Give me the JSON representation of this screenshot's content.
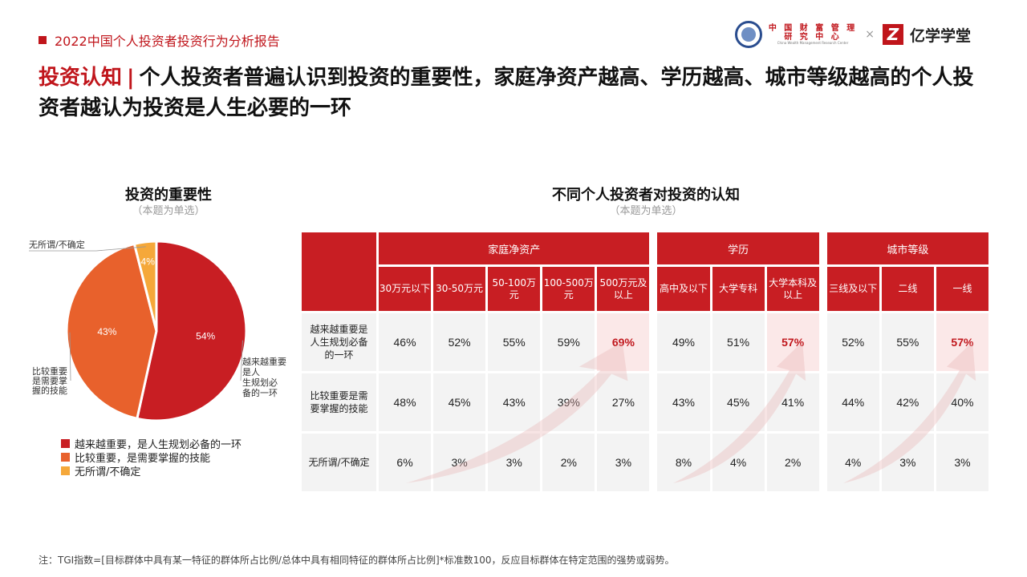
{
  "report_tag": "2022中国个人投资者投资行为分析报告",
  "logos": {
    "center_line1": "中 国 财 富 管 理",
    "center_line2": "研 究 中 心",
    "center_en": "China Wealth Management Research Center",
    "times": "×",
    "yx_mark": "Z",
    "yx_name": "亿学学堂"
  },
  "headline": {
    "topic": "投资认知",
    "bar": "|",
    "text": "个人投资者普遍认识到投资的重要性，家庭净资产越高、学历越高、城市等级越高的个人投资者越认为投资是人生必要的一环"
  },
  "left_section": {
    "title": "投资的重要性",
    "subtitle": "（本题为单选）"
  },
  "right_section": {
    "title": "不同个人投资者对投资的认知",
    "subtitle": "（本题为单选）"
  },
  "colors": {
    "red": "#c81e23",
    "orange": "#e8612c",
    "yellow": "#f5a83a",
    "cell": "#f3f3f3",
    "highlight": "#fbe8e8"
  },
  "chart_data": [
    {
      "type": "pie",
      "title": "投资的重要性",
      "slices": [
        {
          "label": "越来越重要，是人生规划必备的一环",
          "short": "越来越重要，是人生规划必备的一环",
          "value": 54,
          "display": "54%",
          "color": "#c81e23"
        },
        {
          "label": "比较重要，是需要掌握的技能",
          "short": "比较重要，是需要掌握的技能",
          "value": 43,
          "display": "43%",
          "color": "#e8612c"
        },
        {
          "label": "无所谓/不确定",
          "short": "无所谓/不确定",
          "value": 4,
          "display": "4%",
          "color": "#f5a83a"
        }
      ]
    },
    {
      "type": "table",
      "title": "不同个人投资者对投资的认知",
      "groups": [
        {
          "name": "家庭净资产",
          "columns": [
            "30万元以下",
            "30-50万元",
            "50-100万元",
            "100-500万元",
            "500万元及以上"
          ]
        },
        {
          "name": "学历",
          "columns": [
            "高中及以下",
            "大学专科",
            "大学本科及以上"
          ]
        },
        {
          "name": "城市等级",
          "columns": [
            "三线及以下",
            "二线",
            "一线"
          ]
        }
      ],
      "rows": [
        {
          "label": "越来越重要是人生规划必备的一环",
          "values": [
            "46%",
            "52%",
            "55%",
            "59%",
            "69%",
            "49%",
            "51%",
            "57%",
            "52%",
            "55%",
            "57%"
          ]
        },
        {
          "label": "比较重要是需要掌握的技能",
          "values": [
            "48%",
            "45%",
            "43%",
            "39%",
            "27%",
            "43%",
            "45%",
            "41%",
            "44%",
            "42%",
            "40%"
          ]
        },
        {
          "label": "无所谓/不确定",
          "values": [
            "6%",
            "3%",
            "3%",
            "2%",
            "3%",
            "8%",
            "4%",
            "2%",
            "4%",
            "3%",
            "3%"
          ]
        }
      ],
      "highlighted": [
        [
          0,
          4
        ],
        [
          0,
          7
        ],
        [
          0,
          10
        ]
      ]
    }
  ],
  "footnote": "注：TGI指数=[目标群体中具有某一特征的群体所占比例/总体中具有相同特征的群体所占比例]*标准数100，反应目标群体在特定范围的强势或弱势。"
}
